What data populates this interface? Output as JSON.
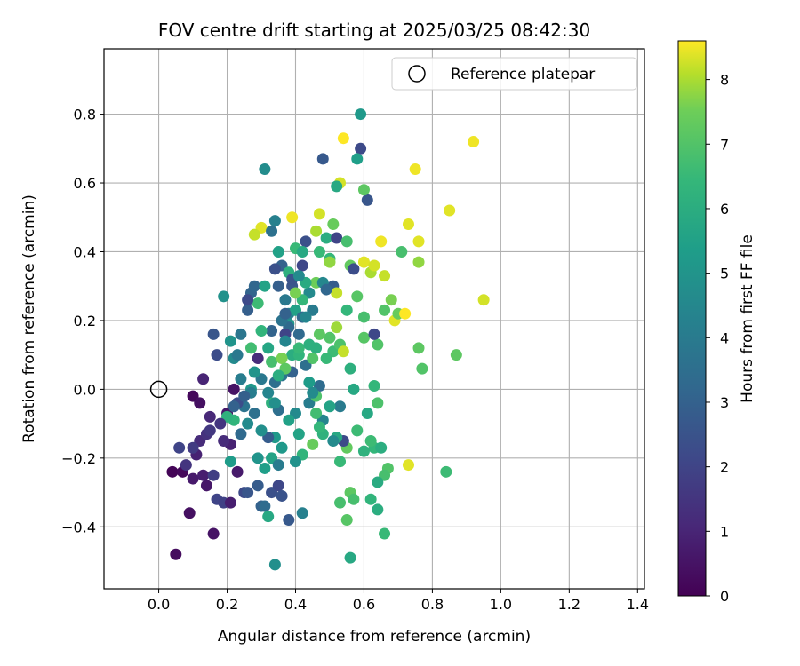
{
  "chart_data": {
    "type": "scatter",
    "title": "FOV centre drift starting at 2025/03/25 08:42:30",
    "xlabel": "Angular distance from reference (arcmin)",
    "ylabel": "Rotation from reference (arcmin)",
    "xlim": [
      -0.16,
      1.42
    ],
    "ylim": [
      -0.58,
      0.99
    ],
    "xticks": [
      "0.0",
      "0.2",
      "0.4",
      "0.6",
      "0.8",
      "1.0",
      "1.2",
      "1.4"
    ],
    "yticks": [
      "−0.4",
      "−0.2",
      "0.0",
      "0.2",
      "0.4",
      "0.6",
      "0.8"
    ],
    "grid": true,
    "legend": {
      "location": "top-right",
      "entries": [
        "Reference platepar"
      ]
    },
    "reference_point": {
      "x": 0.0,
      "y": 0.0
    },
    "colorbar": {
      "label": "Hours from first FF file",
      "colormap": "viridis",
      "range": [
        0,
        8.6
      ],
      "ticks": [
        "0",
        "1",
        "2",
        "3",
        "4",
        "5",
        "6",
        "7",
        "8"
      ]
    },
    "points": [
      {
        "x": 0.04,
        "y": -0.24,
        "h": 0.1
      },
      {
        "x": 0.07,
        "y": -0.24,
        "h": 0.2
      },
      {
        "x": 0.05,
        "y": -0.48,
        "h": 0.3
      },
      {
        "x": 0.09,
        "y": -0.36,
        "h": 0.4
      },
      {
        "x": 0.16,
        "y": -0.42,
        "h": 0.5
      },
      {
        "x": 0.14,
        "y": -0.28,
        "h": 0.6
      },
      {
        "x": 0.1,
        "y": -0.26,
        "h": 0.7
      },
      {
        "x": 0.13,
        "y": -0.25,
        "h": 0.8
      },
      {
        "x": 0.11,
        "y": -0.19,
        "h": 0.9
      },
      {
        "x": 0.1,
        "y": -0.02,
        "h": 0.2
      },
      {
        "x": 0.12,
        "y": -0.04,
        "h": 0.4
      },
      {
        "x": 0.13,
        "y": 0.03,
        "h": 1.0
      },
      {
        "x": 0.15,
        "y": -0.08,
        "h": 1.1
      },
      {
        "x": 0.12,
        "y": -0.15,
        "h": 1.2
      },
      {
        "x": 0.14,
        "y": -0.13,
        "h": 1.4
      },
      {
        "x": 0.15,
        "y": -0.12,
        "h": 1.6
      },
      {
        "x": 0.16,
        "y": -0.25,
        "h": 1.8
      },
      {
        "x": 0.17,
        "y": -0.32,
        "h": 2.0
      },
      {
        "x": 0.19,
        "y": -0.33,
        "h": 1.9
      },
      {
        "x": 0.21,
        "y": -0.33,
        "h": 0.8
      },
      {
        "x": 0.2,
        "y": -0.07,
        "h": 0.6
      },
      {
        "x": 0.22,
        "y": 0.0,
        "h": 0.5
      },
      {
        "x": 0.23,
        "y": -0.24,
        "h": 0.7
      },
      {
        "x": 0.21,
        "y": -0.16,
        "h": 0.9
      },
      {
        "x": 0.25,
        "y": -0.3,
        "h": 2.2
      },
      {
        "x": 0.26,
        "y": -0.3,
        "h": 2.6
      },
      {
        "x": 0.29,
        "y": -0.28,
        "h": 2.8
      },
      {
        "x": 0.3,
        "y": -0.34,
        "h": 3.0
      },
      {
        "x": 0.31,
        "y": -0.34,
        "h": 3.4
      },
      {
        "x": 0.32,
        "y": -0.37,
        "h": 5.8
      },
      {
        "x": 0.33,
        "y": -0.3,
        "h": 2.4
      },
      {
        "x": 0.35,
        "y": -0.28,
        "h": 2.1
      },
      {
        "x": 0.36,
        "y": -0.31,
        "h": 2.5
      },
      {
        "x": 0.34,
        "y": -0.51,
        "h": 4.8
      },
      {
        "x": 0.38,
        "y": -0.38,
        "h": 2.7
      },
      {
        "x": 0.42,
        "y": -0.36,
        "h": 4.2
      },
      {
        "x": 0.1,
        "y": -0.17,
        "h": 1.7
      },
      {
        "x": 0.06,
        "y": -0.17,
        "h": 2.0
      },
      {
        "x": 0.08,
        "y": -0.22,
        "h": 1.5
      },
      {
        "x": 0.17,
        "y": 0.1,
        "h": 2.3
      },
      {
        "x": 0.16,
        "y": 0.16,
        "h": 2.6
      },
      {
        "x": 0.19,
        "y": 0.27,
        "h": 4.9
      },
      {
        "x": 0.21,
        "y": 0.14,
        "h": 5.0
      },
      {
        "x": 0.22,
        "y": 0.09,
        "h": 4.6
      },
      {
        "x": 0.23,
        "y": 0.1,
        "h": 3.9
      },
      {
        "x": 0.24,
        "y": 0.16,
        "h": 3.8
      },
      {
        "x": 0.26,
        "y": 0.23,
        "h": 2.9
      },
      {
        "x": 0.27,
        "y": 0.28,
        "h": 3.1
      },
      {
        "x": 0.28,
        "y": 0.3,
        "h": 3.2
      },
      {
        "x": 0.29,
        "y": 0.25,
        "h": 6.6
      },
      {
        "x": 0.31,
        "y": 0.3,
        "h": 5.6
      },
      {
        "x": 0.3,
        "y": 0.47,
        "h": 8.4
      },
      {
        "x": 0.28,
        "y": 0.45,
        "h": 8.2
      },
      {
        "x": 0.33,
        "y": 0.46,
        "h": 3.6
      },
      {
        "x": 0.34,
        "y": 0.49,
        "h": 4.2
      },
      {
        "x": 0.35,
        "y": 0.4,
        "h": 5.5
      },
      {
        "x": 0.36,
        "y": 0.36,
        "h": 3.0
      },
      {
        "x": 0.34,
        "y": 0.35,
        "h": 2.4
      },
      {
        "x": 0.33,
        "y": 0.17,
        "h": 3.1
      },
      {
        "x": 0.31,
        "y": 0.64,
        "h": 4.7
      },
      {
        "x": 0.39,
        "y": 0.5,
        "h": 8.5
      },
      {
        "x": 0.4,
        "y": 0.41,
        "h": 6.5
      },
      {
        "x": 0.38,
        "y": 0.34,
        "h": 6.1
      },
      {
        "x": 0.39,
        "y": 0.3,
        "h": 2.6
      },
      {
        "x": 0.37,
        "y": 0.26,
        "h": 3.9
      },
      {
        "x": 0.38,
        "y": 0.19,
        "h": 5.1
      },
      {
        "x": 0.39,
        "y": 0.1,
        "h": 6.0
      },
      {
        "x": 0.41,
        "y": 0.1,
        "h": 6.3
      },
      {
        "x": 0.42,
        "y": 0.36,
        "h": 2.1
      },
      {
        "x": 0.43,
        "y": 0.43,
        "h": 2.4
      },
      {
        "x": 0.44,
        "y": 0.28,
        "h": 4.6
      },
      {
        "x": 0.45,
        "y": 0.23,
        "h": 4.0
      },
      {
        "x": 0.46,
        "y": 0.31,
        "h": 7.5
      },
      {
        "x": 0.47,
        "y": 0.4,
        "h": 6.5
      },
      {
        "x": 0.46,
        "y": 0.46,
        "h": 8.0
      },
      {
        "x": 0.47,
        "y": 0.51,
        "h": 8.3
      },
      {
        "x": 0.48,
        "y": 0.67,
        "h": 2.7
      },
      {
        "x": 0.49,
        "y": 0.44,
        "h": 6.0
      },
      {
        "x": 0.5,
        "y": 0.38,
        "h": 6.4
      },
      {
        "x": 0.51,
        "y": 0.48,
        "h": 7.4
      },
      {
        "x": 0.52,
        "y": 0.44,
        "h": 2.0
      },
      {
        "x": 0.51,
        "y": 0.3,
        "h": 2.8
      },
      {
        "x": 0.52,
        "y": 0.28,
        "h": 8.2
      },
      {
        "x": 0.53,
        "y": 0.6,
        "h": 8.3
      },
      {
        "x": 0.52,
        "y": 0.59,
        "h": 5.8
      },
      {
        "x": 0.54,
        "y": 0.73,
        "h": 8.6
      },
      {
        "x": 0.55,
        "y": 0.43,
        "h": 6.8
      },
      {
        "x": 0.56,
        "y": 0.36,
        "h": 7.3
      },
      {
        "x": 0.57,
        "y": 0.35,
        "h": 2.3
      },
      {
        "x": 0.58,
        "y": 0.27,
        "h": 7.1
      },
      {
        "x": 0.59,
        "y": 0.8,
        "h": 5.2
      },
      {
        "x": 0.59,
        "y": 0.7,
        "h": 2.2
      },
      {
        "x": 0.58,
        "y": 0.67,
        "h": 5.4
      },
      {
        "x": 0.61,
        "y": 0.55,
        "h": 2.6
      },
      {
        "x": 0.6,
        "y": 0.58,
        "h": 7.2
      },
      {
        "x": 0.6,
        "y": 0.37,
        "h": 8.4
      },
      {
        "x": 0.62,
        "y": 0.34,
        "h": 8.0
      },
      {
        "x": 0.63,
        "y": 0.36,
        "h": 8.3
      },
      {
        "x": 0.65,
        "y": 0.43,
        "h": 8.5
      },
      {
        "x": 0.66,
        "y": 0.33,
        "h": 8.2
      },
      {
        "x": 0.66,
        "y": 0.23,
        "h": 7.0
      },
      {
        "x": 0.68,
        "y": 0.26,
        "h": 7.6
      },
      {
        "x": 0.69,
        "y": 0.2,
        "h": 8.4
      },
      {
        "x": 0.7,
        "y": 0.22,
        "h": 7.4
      },
      {
        "x": 0.71,
        "y": 0.4,
        "h": 6.8
      },
      {
        "x": 0.73,
        "y": 0.48,
        "h": 8.4
      },
      {
        "x": 0.72,
        "y": 0.22,
        "h": 8.6
      },
      {
        "x": 0.75,
        "y": 0.64,
        "h": 8.5
      },
      {
        "x": 0.76,
        "y": 0.43,
        "h": 8.4
      },
      {
        "x": 0.76,
        "y": 0.37,
        "h": 7.8
      },
      {
        "x": 0.76,
        "y": 0.12,
        "h": 7.2
      },
      {
        "x": 0.77,
        "y": 0.06,
        "h": 7.0
      },
      {
        "x": 0.85,
        "y": 0.52,
        "h": 8.4
      },
      {
        "x": 0.87,
        "y": 0.1,
        "h": 7.2
      },
      {
        "x": 0.92,
        "y": 0.72,
        "h": 8.5
      },
      {
        "x": 0.95,
        "y": 0.26,
        "h": 8.3
      },
      {
        "x": 0.84,
        "y": -0.24,
        "h": 6.6
      },
      {
        "x": 0.73,
        "y": -0.22,
        "h": 8.4
      },
      {
        "x": 0.67,
        "y": -0.23,
        "h": 7.0
      },
      {
        "x": 0.66,
        "y": -0.25,
        "h": 6.8
      },
      {
        "x": 0.66,
        "y": -0.42,
        "h": 6.5
      },
      {
        "x": 0.64,
        "y": -0.35,
        "h": 6.0
      },
      {
        "x": 0.62,
        "y": -0.32,
        "h": 6.3
      },
      {
        "x": 0.64,
        "y": -0.27,
        "h": 5.9
      },
      {
        "x": 0.63,
        "y": -0.17,
        "h": 6.4
      },
      {
        "x": 0.65,
        "y": -0.17,
        "h": 6.0
      },
      {
        "x": 0.62,
        "y": -0.15,
        "h": 6.6
      },
      {
        "x": 0.6,
        "y": -0.18,
        "h": 6.2
      },
      {
        "x": 0.61,
        "y": -0.07,
        "h": 5.8
      },
      {
        "x": 0.63,
        "y": 0.01,
        "h": 6.4
      },
      {
        "x": 0.64,
        "y": -0.04,
        "h": 6.9
      },
      {
        "x": 0.64,
        "y": 0.13,
        "h": 7.0
      },
      {
        "x": 0.6,
        "y": 0.15,
        "h": 7.1
      },
      {
        "x": 0.63,
        "y": 0.16,
        "h": 2.1
      },
      {
        "x": 0.6,
        "y": 0.21,
        "h": 6.8
      },
      {
        "x": 0.58,
        "y": -0.12,
        "h": 6.6
      },
      {
        "x": 0.56,
        "y": -0.3,
        "h": 7.2
      },
      {
        "x": 0.57,
        "y": -0.32,
        "h": 6.8
      },
      {
        "x": 0.55,
        "y": -0.38,
        "h": 7.1
      },
      {
        "x": 0.53,
        "y": -0.33,
        "h": 6.8
      },
      {
        "x": 0.56,
        "y": -0.49,
        "h": 5.8
      },
      {
        "x": 0.53,
        "y": -0.21,
        "h": 6.5
      },
      {
        "x": 0.55,
        "y": -0.17,
        "h": 7.3
      },
      {
        "x": 0.54,
        "y": -0.15,
        "h": 2.2
      },
      {
        "x": 0.52,
        "y": -0.14,
        "h": 5.8
      },
      {
        "x": 0.51,
        "y": -0.15,
        "h": 4.6
      },
      {
        "x": 0.53,
        "y": -0.05,
        "h": 4.0
      },
      {
        "x": 0.51,
        "y": 0.11,
        "h": 6.6
      },
      {
        "x": 0.5,
        "y": 0.15,
        "h": 7.0
      },
      {
        "x": 0.52,
        "y": 0.18,
        "h": 7.9
      },
      {
        "x": 0.53,
        "y": 0.13,
        "h": 6.9
      },
      {
        "x": 0.54,
        "y": 0.11,
        "h": 8.2
      },
      {
        "x": 0.55,
        "y": 0.23,
        "h": 6.4
      },
      {
        "x": 0.56,
        "y": 0.06,
        "h": 6.1
      },
      {
        "x": 0.57,
        "y": 0.0,
        "h": 5.8
      },
      {
        "x": 0.49,
        "y": 0.09,
        "h": 6.5
      },
      {
        "x": 0.48,
        "y": -0.09,
        "h": 4.4
      },
      {
        "x": 0.47,
        "y": 0.01,
        "h": 3.4
      },
      {
        "x": 0.46,
        "y": -0.07,
        "h": 6.7
      },
      {
        "x": 0.45,
        "y": -0.16,
        "h": 7.4
      },
      {
        "x": 0.43,
        "y": 0.07,
        "h": 3.5
      },
      {
        "x": 0.44,
        "y": -0.04,
        "h": 4.1
      },
      {
        "x": 0.42,
        "y": -0.19,
        "h": 6.3
      },
      {
        "x": 0.41,
        "y": -0.13,
        "h": 5.6
      },
      {
        "x": 0.4,
        "y": -0.07,
        "h": 4.6
      },
      {
        "x": 0.39,
        "y": 0.05,
        "h": 3.0
      },
      {
        "x": 0.38,
        "y": 0.18,
        "h": 3.3
      },
      {
        "x": 0.37,
        "y": 0.16,
        "h": 2.0
      },
      {
        "x": 0.36,
        "y": 0.04,
        "h": 3.8
      },
      {
        "x": 0.35,
        "y": -0.06,
        "h": 3.5
      },
      {
        "x": 0.34,
        "y": -0.14,
        "h": 5.2
      },
      {
        "x": 0.33,
        "y": -0.2,
        "h": 5.6
      },
      {
        "x": 0.32,
        "y": -0.14,
        "h": 2.8
      },
      {
        "x": 0.31,
        "y": -0.23,
        "h": 5.4
      },
      {
        "x": 0.3,
        "y": -0.12,
        "h": 4.8
      },
      {
        "x": 0.29,
        "y": -0.2,
        "h": 5.0
      },
      {
        "x": 0.28,
        "y": -0.07,
        "h": 3.6
      },
      {
        "x": 0.27,
        "y": 0.0,
        "h": 5.2
      },
      {
        "x": 0.26,
        "y": -0.1,
        "h": 4.6
      },
      {
        "x": 0.25,
        "y": -0.05,
        "h": 3.7
      },
      {
        "x": 0.24,
        "y": 0.03,
        "h": 4.1
      },
      {
        "x": 0.23,
        "y": -0.04,
        "h": 2.3
      },
      {
        "x": 0.22,
        "y": -0.09,
        "h": 6.3
      },
      {
        "x": 0.21,
        "y": -0.21,
        "h": 5.3
      },
      {
        "x": 0.2,
        "y": -0.08,
        "h": 6.2
      },
      {
        "x": 0.18,
        "y": -0.1,
        "h": 1.5
      },
      {
        "x": 0.19,
        "y": -0.15,
        "h": 1.2
      },
      {
        "x": 0.26,
        "y": 0.26,
        "h": 2.2
      },
      {
        "x": 0.27,
        "y": 0.12,
        "h": 6.7
      },
      {
        "x": 0.29,
        "y": 0.09,
        "h": 1.2
      },
      {
        "x": 0.3,
        "y": 0.17,
        "h": 6.3
      },
      {
        "x": 0.32,
        "y": 0.12,
        "h": 5.7
      },
      {
        "x": 0.33,
        "y": 0.08,
        "h": 6.8
      },
      {
        "x": 0.34,
        "y": 0.02,
        "h": 3.5
      },
      {
        "x": 0.35,
        "y": 0.3,
        "h": 2.9
      },
      {
        "x": 0.36,
        "y": 0.09,
        "h": 7.6
      },
      {
        "x": 0.37,
        "y": 0.14,
        "h": 4.4
      },
      {
        "x": 0.38,
        "y": 0.22,
        "h": 4.2
      },
      {
        "x": 0.4,
        "y": 0.23,
        "h": 5.5
      },
      {
        "x": 0.41,
        "y": 0.16,
        "h": 3.3
      },
      {
        "x": 0.42,
        "y": 0.26,
        "h": 6.4
      },
      {
        "x": 0.43,
        "y": 0.31,
        "h": 5.9
      },
      {
        "x": 0.44,
        "y": 0.02,
        "h": 5.3
      },
      {
        "x": 0.45,
        "y": 0.09,
        "h": 7.0
      },
      {
        "x": 0.46,
        "y": 0.12,
        "h": 6.1
      },
      {
        "x": 0.47,
        "y": 0.16,
        "h": 7.2
      },
      {
        "x": 0.48,
        "y": 0.31,
        "h": 4.5
      },
      {
        "x": 0.49,
        "y": 0.29,
        "h": 3.2
      },
      {
        "x": 0.5,
        "y": 0.37,
        "h": 7.8
      },
      {
        "x": 0.5,
        "y": -0.05,
        "h": 5.6
      },
      {
        "x": 0.48,
        "y": -0.13,
        "h": 6.2
      },
      {
        "x": 0.47,
        "y": -0.11,
        "h": 6.4
      },
      {
        "x": 0.46,
        "y": -0.02,
        "h": 6.9
      },
      {
        "x": 0.4,
        "y": -0.21,
        "h": 4.9
      },
      {
        "x": 0.38,
        "y": -0.09,
        "h": 5.5
      },
      {
        "x": 0.36,
        "y": -0.17,
        "h": 5.2
      },
      {
        "x": 0.35,
        "y": -0.22,
        "h": 4.0
      },
      {
        "x": 0.33,
        "y": -0.04,
        "h": 6.2
      },
      {
        "x": 0.32,
        "y": -0.01,
        "h": 4.4
      },
      {
        "x": 0.3,
        "y": 0.03,
        "h": 3.9
      },
      {
        "x": 0.28,
        "y": 0.05,
        "h": 5.0
      },
      {
        "x": 0.27,
        "y": -0.01,
        "h": 4.1
      },
      {
        "x": 0.25,
        "y": -0.02,
        "h": 2.9
      },
      {
        "x": 0.24,
        "y": -0.13,
        "h": 3.3
      },
      {
        "x": 0.22,
        "y": -0.05,
        "h": 3.0
      },
      {
        "x": 0.41,
        "y": 0.12,
        "h": 6.5
      },
      {
        "x": 0.42,
        "y": 0.21,
        "h": 3.3
      },
      {
        "x": 0.43,
        "y": 0.21,
        "h": 4.4
      },
      {
        "x": 0.44,
        "y": 0.13,
        "h": 6.1
      },
      {
        "x": 0.45,
        "y": -0.01,
        "h": 4.6
      },
      {
        "x": 0.36,
        "y": 0.2,
        "h": 3.7
      },
      {
        "x": 0.37,
        "y": 0.22,
        "h": 3.0
      },
      {
        "x": 0.39,
        "y": 0.32,
        "h": 2.5
      },
      {
        "x": 0.4,
        "y": 0.28,
        "h": 7.6
      },
      {
        "x": 0.41,
        "y": 0.33,
        "h": 4.6
      },
      {
        "x": 0.42,
        "y": 0.4,
        "h": 5.8
      },
      {
        "x": 0.37,
        "y": 0.06,
        "h": 7.2
      },
      {
        "x": 0.35,
        "y": 0.04,
        "h": 6.0
      },
      {
        "x": 0.34,
        "y": -0.04,
        "h": 4.8
      }
    ]
  }
}
